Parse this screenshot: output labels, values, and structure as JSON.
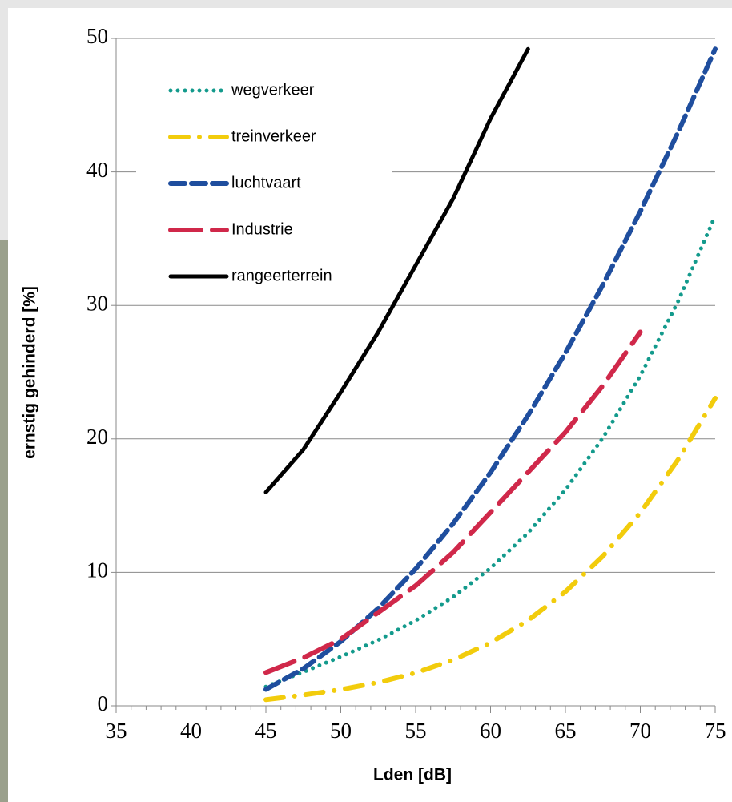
{
  "chart_data": {
    "type": "line",
    "x": [
      45,
      47.5,
      50,
      52.5,
      55,
      57.5,
      60,
      62.5,
      65,
      67.5,
      70,
      72.5,
      75
    ],
    "series": [
      {
        "name": "wegverkeer",
        "color": "#139a8c",
        "style": "dotted",
        "values": [
          1.43,
          2.54,
          3.68,
          4.93,
          6.39,
          8.16,
          10.31,
          12.96,
          16.18,
          20.07,
          24.73,
          30.25,
          36.71
        ]
      },
      {
        "name": "treinverkeer",
        "color": "#f2cc0c",
        "style": "dash-dot",
        "values": [
          0.46,
          0.81,
          1.22,
          1.75,
          2.47,
          3.44,
          4.73,
          6.41,
          8.55,
          11.22,
          14.48,
          18.41,
          23.05
        ]
      },
      {
        "name": "luchtvaart",
        "color": "#1f4e9e",
        "style": "dashed",
        "values": [
          1.23,
          2.79,
          4.82,
          7.31,
          10.26,
          13.66,
          17.49,
          21.76,
          26.44,
          31.54,
          37.04,
          42.93,
          49.21
        ]
      },
      {
        "name": "Industrie",
        "color": "#d0284a",
        "style": "long-dash",
        "values": [
          2.5,
          3.6,
          5.0,
          7.0,
          9.0,
          11.5,
          14.5,
          17.5,
          20.5,
          24.0,
          28.0,
          null,
          null
        ]
      },
      {
        "name": "rangeerterrein",
        "color": "#000000",
        "style": "solid",
        "values": [
          16,
          19.2,
          23.5,
          28,
          33,
          38,
          44,
          49.2,
          null,
          null,
          null,
          null,
          null
        ]
      }
    ],
    "x_label": "Lden [dB]",
    "y_label": "ernstig gehinderd [%]",
    "xlim": [
      35,
      75
    ],
    "xticks": [
      35,
      40,
      45,
      50,
      55,
      60,
      65,
      70,
      75
    ],
    "ylim": [
      0,
      50
    ],
    "yticks": [
      0,
      10,
      20,
      30,
      40,
      50
    ],
    "grid": true,
    "legend": "top-left"
  }
}
